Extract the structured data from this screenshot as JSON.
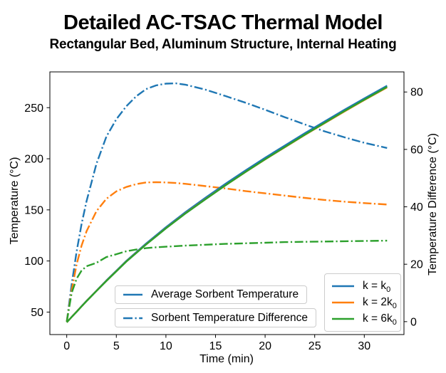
{
  "title": "Detailed AC-TSAC Thermal Model",
  "subtitle": "Rectangular Bed, Aluminum Structure, Internal Heating",
  "chart_data": {
    "type": "line",
    "title": "Detailed AC-TSAC Thermal Model",
    "subtitle": "Rectangular Bed, Aluminum Structure, Internal Heating",
    "xlabel": "Time (min)",
    "ylabel_left": "Temperature (°C)",
    "ylabel_right": "Temperature Difference (°C)",
    "xlim": [
      -1.7,
      34
    ],
    "ylim_left": [
      28,
      285
    ],
    "ylim_right": [
      -4.5,
      87
    ],
    "xticks": [
      0,
      5,
      10,
      15,
      20,
      25,
      30
    ],
    "yticks_left": [
      50,
      100,
      150,
      200,
      250
    ],
    "yticks_right": [
      0,
      20,
      40,
      60,
      80
    ],
    "grid": false,
    "legend_position_line_styles": "lower center, two stacked boxes",
    "legend_position_k": "lower right",
    "colors": {
      "k0": "#1f77b4",
      "k2": "#ff7f0e",
      "k6": "#2ca02c"
    },
    "x": [
      0,
      0.5,
      1,
      1.5,
      2,
      3,
      4,
      5,
      6,
      7,
      8,
      9,
      10,
      11,
      12,
      14,
      16,
      18,
      20,
      22,
      24,
      26,
      28,
      30,
      32.3
    ],
    "series": [
      {
        "name": "tdiff-k0",
        "legend": "Sorbent Temperature Difference, k = k0",
        "axis": "right",
        "style": "dashdot",
        "color": "#1f77b4",
        "values": [
          0,
          13,
          24.5,
          34,
          42,
          55,
          64.5,
          70.5,
          75,
          78.5,
          81,
          82.3,
          82.9,
          83,
          82.5,
          80.8,
          78.6,
          76.3,
          73.8,
          71.2,
          68.7,
          66.3,
          64.2,
          62.3,
          60.5
        ]
      },
      {
        "name": "tdiff-2k0",
        "legend": "Sorbent Temperature Difference, k = 2k0",
        "axis": "right",
        "style": "dashdot",
        "color": "#ff7f0e",
        "values": [
          0,
          11,
          20,
          26.5,
          31.5,
          38.5,
          42.8,
          45.4,
          46.9,
          47.9,
          48.5,
          48.6,
          48.5,
          48.3,
          48,
          47.2,
          46.4,
          45.5,
          44.7,
          43.9,
          43.1,
          42.4,
          41.8,
          41.3,
          40.8
        ]
      },
      {
        "name": "tdiff-6k0",
        "legend": "Sorbent Temperature Difference, k = 6k0",
        "axis": "right",
        "style": "dashdot",
        "color": "#2ca02c",
        "values": [
          0,
          10,
          15,
          17.8,
          19.3,
          20.5,
          22.5,
          23.5,
          24.5,
          25.1,
          25.6,
          25.9,
          26.1,
          26.3,
          26.5,
          26.8,
          27.1,
          27.3,
          27.5,
          27.7,
          27.8,
          27.9,
          28,
          28.1,
          28.2
        ]
      },
      {
        "name": "avg-temp-k0",
        "legend": "Average Sorbent Temperature, k = k0",
        "axis": "left",
        "style": "solid",
        "color": "#1f77b4",
        "values": [
          40,
          45.3,
          50.5,
          55.8,
          61,
          71,
          81,
          90.5,
          100,
          108.5,
          117,
          125,
          133,
          140.5,
          148,
          162,
          175.5,
          188.5,
          201,
          213,
          225,
          236.5,
          248,
          259,
          271.5
        ]
      },
      {
        "name": "avg-temp-2k0",
        "legend": "Average Sorbent Temperature, k = 2k0",
        "axis": "left",
        "style": "solid",
        "color": "#ff7f0e",
        "values": [
          40,
          45.2,
          50.4,
          55.6,
          60.8,
          70.7,
          80.6,
          90,
          99.4,
          107.8,
          116.2,
          124.1,
          132,
          139.4,
          146.8,
          160.6,
          174,
          186.9,
          199.3,
          211.3,
          223.3,
          234.8,
          246.3,
          257.4,
          269.8
        ]
      },
      {
        "name": "avg-temp-6k0",
        "legend": "Average Sorbent Temperature, k = 6k0",
        "axis": "left",
        "style": "solid",
        "color": "#2ca02c",
        "values": [
          40,
          45.2,
          50.3,
          55.5,
          60.7,
          70.6,
          80.5,
          89.9,
          99.3,
          107.7,
          116.1,
          124,
          131.9,
          139.3,
          146.7,
          160.5,
          174,
          187,
          199.5,
          211.5,
          223.6,
          235.1,
          246.7,
          257.8,
          270.3
        ]
      }
    ],
    "legend_style": {
      "entries": [
        {
          "label": "Average Sorbent Temperature",
          "style": "solid"
        },
        {
          "label": "Sorbent Temperature Difference",
          "style": "dashdot"
        }
      ]
    },
    "legend_k": {
      "entries": [
        {
          "prefix": "k = k",
          "sub": "0",
          "color_key": "k0"
        },
        {
          "prefix": "k = 2k",
          "sub": "0",
          "color_key": "k2"
        },
        {
          "prefix": "k = 6k",
          "sub": "0",
          "color_key": "k6"
        }
      ]
    }
  }
}
